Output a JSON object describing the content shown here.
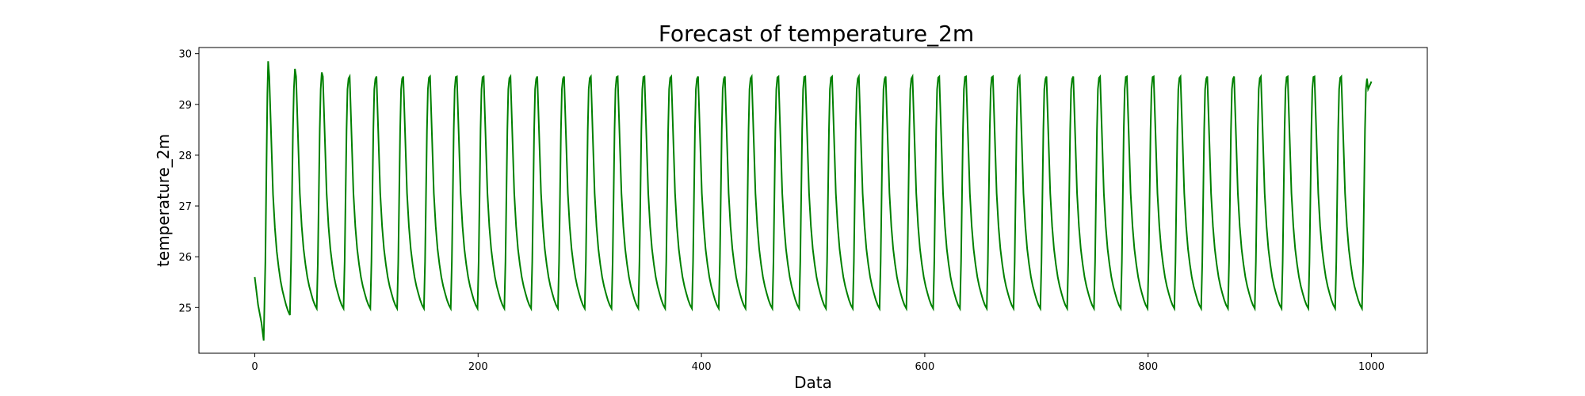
{
  "chart_data": {
    "type": "line",
    "title": "Forecast of temperature_2m",
    "xlabel": "Data",
    "ylabel": "temperature_2m",
    "xlim": [
      -50,
      1050
    ],
    "ylim": [
      24.1,
      30.12
    ],
    "xticks": [
      0,
      200,
      400,
      600,
      800,
      1000
    ],
    "yticks": [
      25,
      26,
      27,
      28,
      29,
      30
    ],
    "grid": false,
    "legend": "none",
    "series": [
      {
        "color": "#008000",
        "generator": {
          "kind": "periodic_forecast",
          "n_points": 1000,
          "start_value": 25.6,
          "first_min": 24.35,
          "first_min_x": 8,
          "first_peak": 29.85,
          "first_peak_x": 12,
          "period": 24,
          "steady_peak": 29.52,
          "steady_min": 24.95,
          "end_x": 1000,
          "end_value": 29.45
        }
      }
    ]
  }
}
